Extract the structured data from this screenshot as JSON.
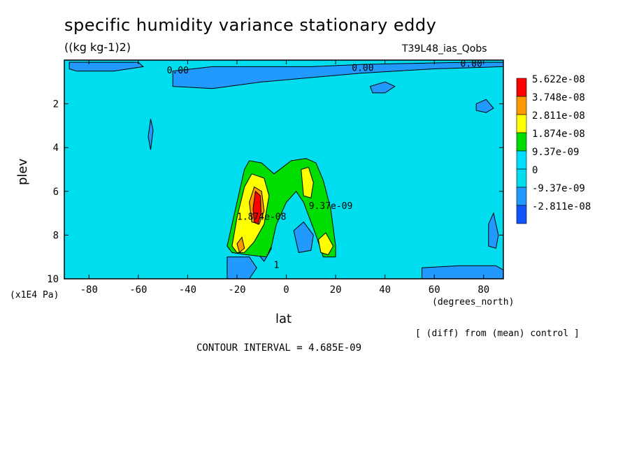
{
  "chart_data": {
    "type": "heatmap",
    "title": "specific humidity variance stationary eddy",
    "subtitle": "((kg kg-1)2)",
    "experiment": "T39L48_ias_Qobs",
    "xlabel": "lat",
    "x_unit": "(degrees_north)",
    "ylabel": "plev",
    "y_unit": "(x1E4 Pa)",
    "note": "[ (diff) from (mean) control ]",
    "contour_interval": "CONTOUR INTERVAL = 4.685E-09",
    "xlim": [
      -90,
      88
    ],
    "ylim": [
      10,
      0
    ],
    "x_ticks": [
      -80,
      -60,
      -40,
      -20,
      0,
      20,
      40,
      60,
      80
    ],
    "x_tick_labels": [
      "-80",
      "-60",
      "-40",
      "-20",
      "0",
      "20",
      "40",
      "60",
      "80"
    ],
    "y_ticks": [
      2,
      4,
      6,
      8,
      10
    ],
    "y_tick_labels": [
      "2",
      "4",
      "6",
      "8",
      "10"
    ],
    "legend": {
      "placement": "right",
      "entries": [
        {
          "label": "5.622e-08",
          "color": "#ff0000"
        },
        {
          "label": "3.748e-08",
          "color": "#ff9900"
        },
        {
          "label": "2.811e-08",
          "color": "#ffff00"
        },
        {
          "label": "1.874e-08",
          "color": "#00dd00"
        },
        {
          "label": "9.37e-09",
          "color": "#00ddff"
        },
        {
          "label": "0",
          "color": "#00ddee"
        },
        {
          "label": "-9.37e-09",
          "color": "#2299ff"
        },
        {
          "label": "-2.811e-08",
          "color": "#1155ff"
        }
      ]
    },
    "background_color": "#00ddee",
    "regions": [
      {
        "level": "negative",
        "color": "#2299ff",
        "points": [
          [
            -88,
            0.1
          ],
          [
            -60,
            0.1
          ],
          [
            -58,
            0.3
          ],
          [
            -70,
            0.5
          ],
          [
            -85,
            0.5
          ],
          [
            -88,
            0.4
          ]
        ]
      },
      {
        "level": "negative",
        "color": "#2299ff",
        "points": [
          [
            -46,
            0.5
          ],
          [
            -30,
            0.3
          ],
          [
            -10,
            0.3
          ],
          [
            10,
            0.3
          ],
          [
            30,
            0.2
          ],
          [
            50,
            0.15
          ],
          [
            75,
            0.1
          ],
          [
            88,
            0.1
          ],
          [
            88,
            0.3
          ],
          [
            60,
            0.4
          ],
          [
            30,
            0.6
          ],
          [
            10,
            0.8
          ],
          [
            -10,
            1.0
          ],
          [
            -30,
            1.3
          ],
          [
            -46,
            1.2
          ]
        ]
      },
      {
        "level": "negative",
        "color": "#2299ff",
        "points": [
          [
            34,
            1.2
          ],
          [
            40,
            1.0
          ],
          [
            44,
            1.2
          ],
          [
            40,
            1.5
          ],
          [
            35,
            1.5
          ]
        ]
      },
      {
        "level": "negative",
        "color": "#2299ff",
        "points": [
          [
            77,
            2.0
          ],
          [
            81,
            1.8
          ],
          [
            84,
            2.2
          ],
          [
            81,
            2.4
          ],
          [
            77,
            2.3
          ]
        ]
      },
      {
        "level": "negative",
        "color": "#2299ff",
        "points": [
          [
            -55,
            2.7
          ],
          [
            -54,
            3.2
          ],
          [
            -55,
            4.1
          ],
          [
            -56,
            3.5
          ]
        ]
      },
      {
        "level": "negative",
        "color": "#2299ff",
        "points": [
          [
            82,
            7.5
          ],
          [
            84,
            7.0
          ],
          [
            86,
            8.0
          ],
          [
            85,
            8.6
          ],
          [
            82,
            8.5
          ]
        ]
      },
      {
        "level": "negative",
        "color": "#2299ff",
        "points": [
          [
            -24,
            9.0
          ],
          [
            -15,
            9.0
          ],
          [
            -12,
            9.5
          ],
          [
            -15,
            10
          ],
          [
            -24,
            10
          ]
        ]
      },
      {
        "level": "negative",
        "color": "#2299ff",
        "points": [
          [
            -12,
            8.2
          ],
          [
            -8,
            8.0
          ],
          [
            -6,
            8.6
          ],
          [
            -9,
            9.2
          ],
          [
            -12,
            8.8
          ]
        ]
      },
      {
        "level": "negative",
        "color": "#2299ff",
        "points": [
          [
            3,
            7.8
          ],
          [
            7,
            7.4
          ],
          [
            11,
            8.0
          ],
          [
            10,
            8.7
          ],
          [
            5,
            8.8
          ]
        ]
      },
      {
        "level": "negative",
        "color": "#2299ff",
        "points": [
          [
            55,
            9.5
          ],
          [
            70,
            9.4
          ],
          [
            85,
            9.4
          ],
          [
            88,
            9.6
          ],
          [
            88,
            10
          ],
          [
            55,
            10
          ]
        ]
      },
      {
        "level": "positive1",
        "color": "#00dd00",
        "points": [
          [
            -24,
            8.5
          ],
          [
            -22,
            7.5
          ],
          [
            -19,
            6.0
          ],
          [
            -17,
            5.0
          ],
          [
            -15,
            4.6
          ],
          [
            -10,
            4.7
          ],
          [
            -5,
            5.2
          ],
          [
            2,
            4.6
          ],
          [
            8,
            4.5
          ],
          [
            12,
            4.7
          ],
          [
            15,
            5.5
          ],
          [
            18,
            6.8
          ],
          [
            20,
            8.5
          ],
          [
            20,
            9.0
          ],
          [
            15,
            9.0
          ],
          [
            12,
            8.0
          ],
          [
            7,
            6.5
          ],
          [
            4,
            6.0
          ],
          [
            0,
            6.5
          ],
          [
            -4,
            7.5
          ],
          [
            -6,
            8.5
          ],
          [
            -8,
            9.0
          ],
          [
            -16,
            8.9
          ],
          [
            -22,
            8.8
          ]
        ]
      },
      {
        "level": "positive2",
        "color": "#ffff00",
        "points": [
          [
            -22,
            8.5
          ],
          [
            -20,
            7.2
          ],
          [
            -17,
            5.8
          ],
          [
            -14,
            5.2
          ],
          [
            -9,
            5.4
          ],
          [
            -7,
            6.2
          ],
          [
            -9,
            7.5
          ],
          [
            -13,
            8.3
          ],
          [
            -17,
            8.8
          ],
          [
            -20,
            8.8
          ]
        ]
      },
      {
        "level": "positive2",
        "color": "#ffff00",
        "points": [
          [
            6,
            5.0
          ],
          [
            9,
            4.9
          ],
          [
            11,
            5.6
          ],
          [
            10,
            6.3
          ],
          [
            7,
            6.2
          ]
        ]
      },
      {
        "level": "positive2",
        "color": "#ffff00",
        "points": [
          [
            13,
            8.2
          ],
          [
            16,
            7.9
          ],
          [
            19,
            8.5
          ],
          [
            17,
            8.9
          ],
          [
            14,
            8.8
          ]
        ]
      },
      {
        "level": "positive3",
        "color": "#ff9900",
        "points": [
          [
            -15,
            6.5
          ],
          [
            -13,
            5.8
          ],
          [
            -10,
            6.0
          ],
          [
            -9,
            6.9
          ],
          [
            -11,
            7.5
          ],
          [
            -14,
            7.4
          ]
        ]
      },
      {
        "level": "positive3",
        "color": "#ff9900",
        "points": [
          [
            -20,
            8.4
          ],
          [
            -18,
            8.1
          ],
          [
            -17,
            8.6
          ],
          [
            -19,
            8.8
          ]
        ]
      },
      {
        "level": "positive4",
        "color": "#ff0000",
        "points": [
          [
            -13.5,
            6.8
          ],
          [
            -12.5,
            6.0
          ],
          [
            -10.5,
            6.2
          ],
          [
            -10.2,
            7.0
          ],
          [
            -11.5,
            7.5
          ],
          [
            -13,
            7.4
          ]
        ]
      }
    ],
    "contour_labels": [
      {
        "text": "0.00",
        "x": -44,
        "y": 0.6
      },
      {
        "text": "0.00",
        "x": 31,
        "y": 0.5
      },
      {
        "text": "0.00",
        "x": 75,
        "y": 0.3
      },
      {
        "text": "9.37e-09",
        "x": 18,
        "y": 6.8
      },
      {
        "text": "1.874e-08",
        "x": -10,
        "y": 7.3
      },
      {
        "text": "1",
        "x": -4,
        "y": 9.5
      }
    ]
  }
}
